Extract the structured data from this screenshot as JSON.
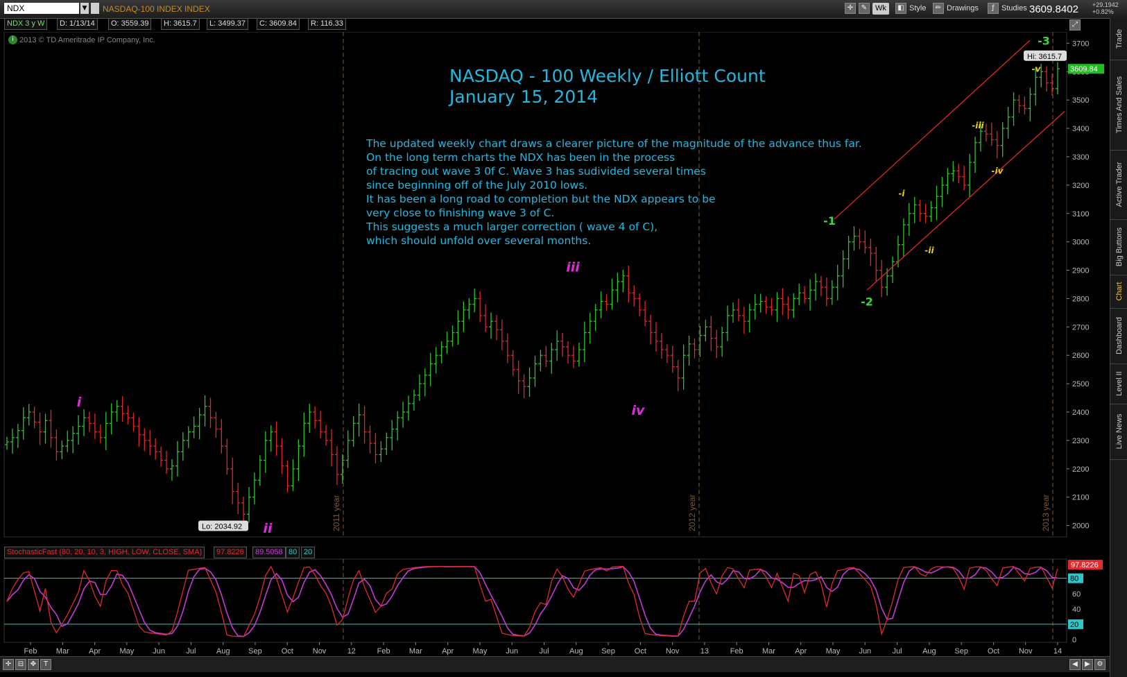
{
  "toolbar": {
    "symbol": "NDX",
    "symbol_description": "NASDAQ-100 INDEX INDEX",
    "timeframe_button": "Wk",
    "style_label": "Style",
    "drawings_label": "Drawings",
    "studies_label": "Studies",
    "last_price": "3609.8402",
    "change_points": "+29.1942",
    "change_percent": "+0.82%"
  },
  "infobar": {
    "series": "NDX 3 y W",
    "date": "D: 1/13/14",
    "open": "O: 3559.39",
    "high": "H: 3615.7",
    "low": "L: 3499.37",
    "close": "C: 3609.84",
    "range": "R: 116.33"
  },
  "copyright": "2013 © TD Ameritrade IP Company, Inc.",
  "sidetabs": [
    "Trade",
    "Times And Sales",
    "Active Trader",
    "Big Buttons",
    "Chart",
    "Dashboard",
    "Level II",
    "Live News"
  ],
  "active_sidetab": "Chart",
  "chart_data": {
    "type": "bar",
    "title": "NASDAQ - 100 Weekly / Elliott Count",
    "subtitle": "January 15, 2014",
    "commentary": [
      "The updated weekly chart draws a clearer picture of the magnitude of the advance thus far.",
      "On the long term charts the NDX has been in the process",
      "of tracing out wave 3 0f C.  Wave 3 has sudivided several times",
      "since beginning off of the July 2010 lows.",
      "It has been a long road to completion but the NDX appears to be",
      "very close to finishing wave 3 of C.",
      "This suggests a much larger correction ( wave 4 of C),",
      "which should unfold over several months."
    ],
    "y_ticks": [
      2000,
      2100,
      2200,
      2300,
      2400,
      2500,
      2600,
      2700,
      2800,
      2900,
      3000,
      3100,
      3200,
      3300,
      3400,
      3500,
      3600,
      3700
    ],
    "ylim": [
      1960,
      3740
    ],
    "x_ticks": [
      "Feb",
      "Mar",
      "Apr",
      "May",
      "Jun",
      "Jul",
      "Aug",
      "Sep",
      "Oct",
      "Nov",
      "12",
      "Feb",
      "Mar",
      "Apr",
      "May",
      "Jun",
      "Jul",
      "Aug",
      "Sep",
      "Oct",
      "Nov",
      "13",
      "Feb",
      "Mar",
      "Apr",
      "May",
      "Jun",
      "Jul",
      "Aug",
      "Sep",
      "Oct",
      "Nov",
      "14"
    ],
    "year_markers": [
      "2011 year",
      "2012 year",
      "2013 year"
    ],
    "weekly_closes": [
      2295,
      2310,
      2335,
      2380,
      2400,
      2365,
      2330,
      2370,
      2310,
      2260,
      2280,
      2300,
      2325,
      2350,
      2380,
      2360,
      2330,
      2310,
      2360,
      2400,
      2420,
      2395,
      2380,
      2350,
      2320,
      2300,
      2280,
      2260,
      2230,
      2200,
      2210,
      2260,
      2300,
      2330,
      2350,
      2390,
      2420,
      2380,
      2340,
      2280,
      2200,
      2120,
      2080,
      2040,
      2100,
      2160,
      2230,
      2300,
      2330,
      2280,
      2210,
      2140,
      2200,
      2280,
      2360,
      2400,
      2370,
      2330,
      2300,
      2250,
      2180,
      2230,
      2300,
      2360,
      2390,
      2330,
      2290,
      2250,
      2270,
      2310,
      2340,
      2380,
      2400,
      2430,
      2460,
      2500,
      2530,
      2570,
      2600,
      2630,
      2650,
      2680,
      2720,
      2760,
      2780,
      2800,
      2740,
      2700,
      2720,
      2690,
      2650,
      2600,
      2550,
      2510,
      2490,
      2520,
      2570,
      2600,
      2580,
      2620,
      2650,
      2630,
      2600,
      2580,
      2620,
      2680,
      2720,
      2760,
      2790,
      2780,
      2830,
      2860,
      2880,
      2820,
      2800,
      2760,
      2720,
      2680,
      2650,
      2620,
      2600,
      2560,
      2520,
      2600,
      2640,
      2620,
      2670,
      2700,
      2660,
      2630,
      2680,
      2740,
      2760,
      2740,
      2720,
      2760,
      2780,
      2790,
      2770,
      2760,
      2800,
      2780,
      2760,
      2800,
      2820,
      2800,
      2830,
      2860,
      2840,
      2800,
      2840,
      2880,
      2940,
      3000,
      3020,
      3000,
      2980,
      2960,
      2900,
      2840,
      2880,
      2930,
      2990,
      3060,
      3100,
      3130,
      3100,
      3090,
      3120,
      3160,
      3200,
      3240,
      3250,
      3230,
      3200,
      3280,
      3350,
      3390,
      3380,
      3360,
      3340,
      3400,
      3440,
      3500,
      3480,
      3470,
      3520,
      3580,
      3600,
      3560,
      3540,
      3609.84
    ],
    "hi_label": "Hi: 3615.7",
    "lo_label": "Lo: 2034.92",
    "last_price_label": "3609.84",
    "wave_labels": [
      "i",
      "ii",
      "iii",
      "iv",
      "-1",
      "-2",
      "-3",
      "-i",
      "-ii",
      "-iii",
      "-iv",
      "-v"
    ],
    "stochastic": {
      "label": "StochasticFast (80, 20, 10, 3, HIGH, LOW, CLOSE, SMA)",
      "k_value": "97.8226",
      "d_value": "89.5058",
      "overbought": "80",
      "oversold": "20",
      "y_ticks": [
        0,
        20,
        40,
        60,
        80
      ],
      "ylim": [
        0,
        100
      ]
    },
    "colors": {
      "up_bar": "#2fc42f",
      "down_bar": "#e0282a",
      "wave_main": "#e02ae0",
      "wave_minor": "#3ed63e",
      "wave_sub": "#e8d020",
      "channel": "#e0282a",
      "text": "#24b8e0",
      "stoch_k": "#e02a30",
      "stoch_d": "#c43ad8",
      "levels": "#2ac8c8"
    },
    "grid": false
  }
}
